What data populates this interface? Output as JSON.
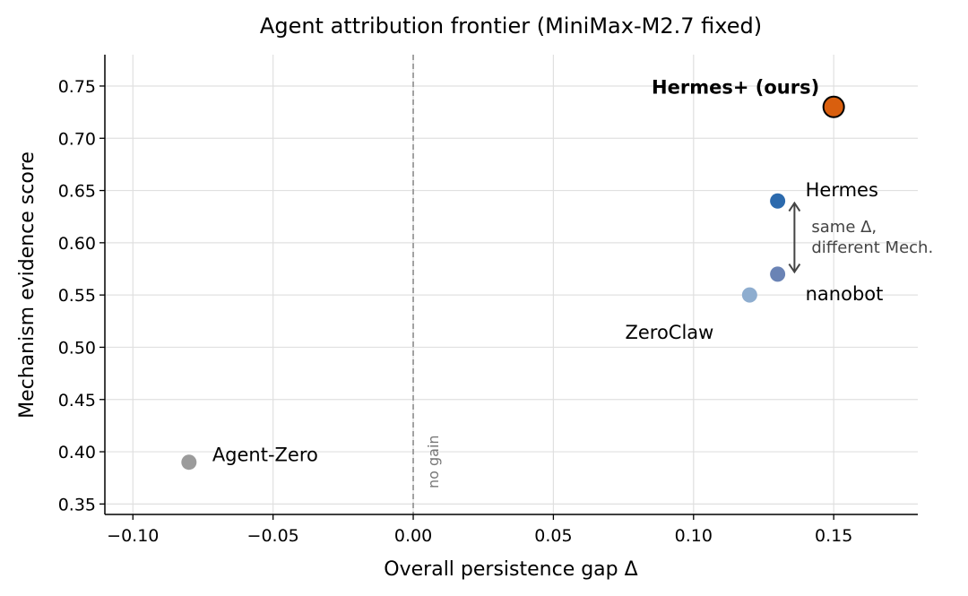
{
  "chart_data": {
    "type": "scatter",
    "title": "Agent attribution frontier (MiniMax-M2.7 fixed)",
    "xlabel": "Overall persistence gap Δ",
    "ylabel": "Mechanism evidence score",
    "xlim": [
      -0.11,
      0.18
    ],
    "ylim": [
      0.34,
      0.78
    ],
    "xticks": [
      -0.1,
      -0.05,
      0.0,
      0.05,
      0.1,
      0.15
    ],
    "xtick_labels": [
      "−0.10",
      "−0.05",
      "0.00",
      "0.05",
      "0.10",
      "0.15"
    ],
    "yticks": [
      0.35,
      0.4,
      0.45,
      0.5,
      0.55,
      0.6,
      0.65,
      0.7,
      0.75
    ],
    "ytick_labels": [
      "0.35",
      "0.40",
      "0.45",
      "0.50",
      "0.55",
      "0.60",
      "0.65",
      "0.70",
      "0.75"
    ],
    "grid": true,
    "points": [
      {
        "name": "Agent-Zero",
        "x": -0.08,
        "y": 0.39,
        "color": "#9b9b9b",
        "bold": false,
        "highlight": false
      },
      {
        "name": "ZeroClaw",
        "x": 0.12,
        "y": 0.55,
        "color": "#8eadcf",
        "bold": false,
        "highlight": false
      },
      {
        "name": "nanobot",
        "x": 0.13,
        "y": 0.57,
        "color": "#6a83b5",
        "bold": false,
        "highlight": false
      },
      {
        "name": "Hermes",
        "x": 0.13,
        "y": 0.64,
        "color": "#2c6aad",
        "bold": false,
        "highlight": false
      },
      {
        "name": "Hermes+ (ours)",
        "x": 0.15,
        "y": 0.73,
        "color": "#d95f0e",
        "bold": true,
        "highlight": true
      }
    ],
    "reference_line": {
      "x": 0.0,
      "label": "no gain",
      "color": "#999999",
      "style": "dashed"
    },
    "annotation": {
      "text_line1": "same Δ,",
      "text_line2": "different Mech.",
      "arrow_x": 0.136,
      "arrow_y_from": 0.572,
      "arrow_y_to": 0.638,
      "color": "#444444"
    }
  }
}
